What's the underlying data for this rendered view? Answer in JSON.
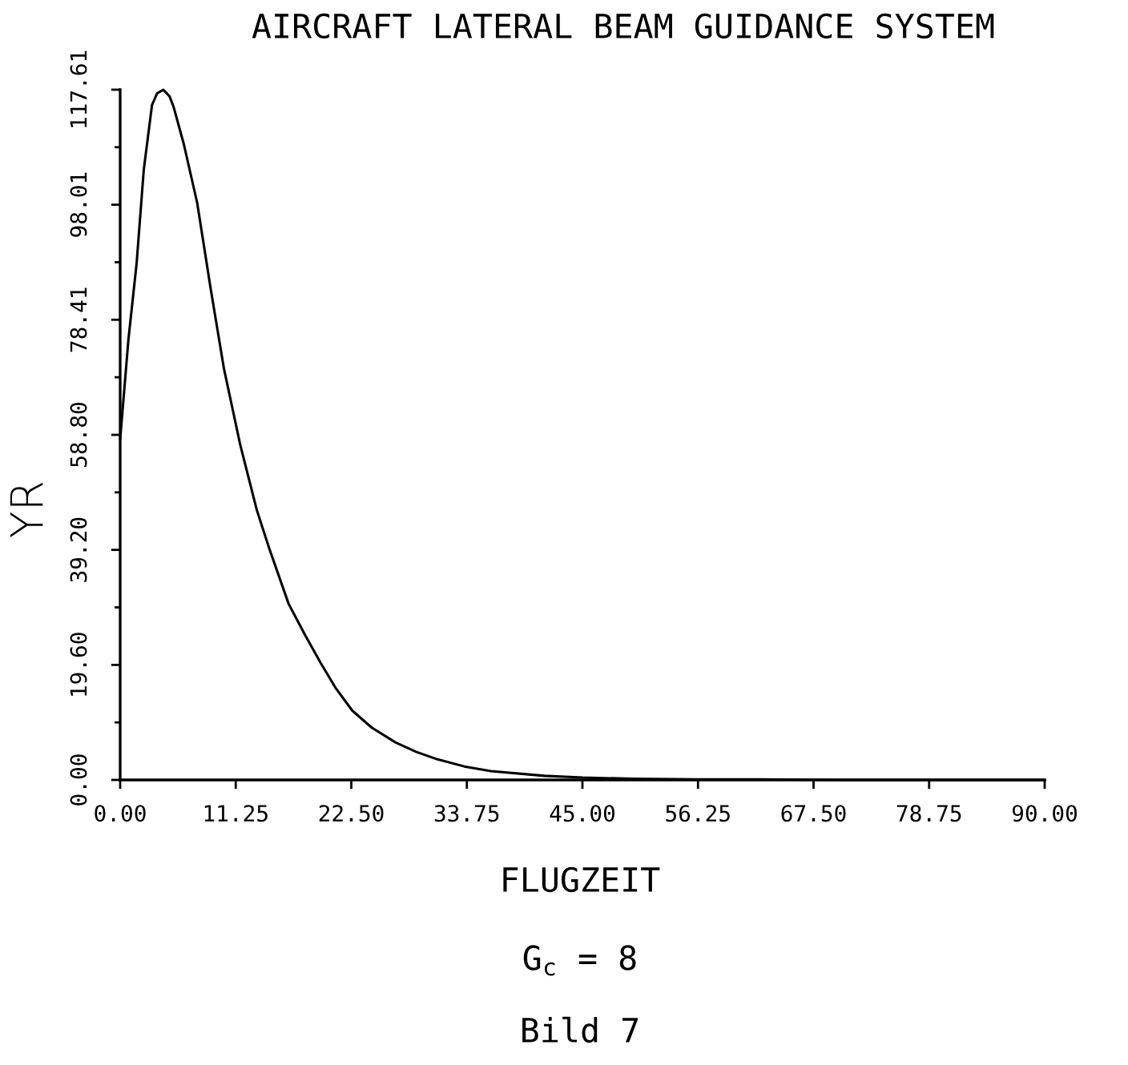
{
  "chart_data": {
    "type": "line",
    "title": "AIRCRAFT LATERAL BEAM GUIDANCE SYSTEM",
    "xlabel": "FLUGZEIT",
    "ylabel": "YR",
    "annotations": [
      "G$_{c}$ = 8",
      "Bild 7"
    ],
    "x": [
      0,
      0.8,
      1.6,
      2.3,
      3.1,
      3.6,
      4.2,
      4.8,
      5.2,
      6.2,
      7.5,
      8.8,
      10.1,
      11.7,
      13.3,
      14.5,
      16.4,
      18,
      19.5,
      21,
      22.6,
      24.5,
      26.8,
      28.8,
      30.9,
      33.5,
      36.1,
      41.3,
      45,
      50,
      56,
      62,
      70,
      80,
      90
    ],
    "series": [
      {
        "color": "#000000",
        "values": [
          58,
          75,
          88,
          104,
          115,
          117,
          117.6,
          116.5,
          114.7,
          108.3,
          98.3,
          83.8,
          70.1,
          57,
          46,
          39.5,
          30,
          24.7,
          20,
          15.6,
          11.8,
          8.9,
          6.4,
          4.8,
          3.5,
          2.3,
          1.5,
          0.7,
          0.4,
          0.2,
          0.1,
          0.1,
          0,
          0,
          0
        ]
      }
    ],
    "xlim": [
      0,
      90
    ],
    "ylim": [
      0,
      117.61
    ],
    "xticks": [
      {
        "value": 0,
        "label": "0.00"
      },
      {
        "value": 11.25,
        "label": "11.25"
      },
      {
        "value": 22.5,
        "label": "22.50"
      },
      {
        "value": 33.75,
        "label": "33.75"
      },
      {
        "value": 45,
        "label": "45.00"
      },
      {
        "value": 56.25,
        "label": "56.25"
      },
      {
        "value": 67.5,
        "label": "67.50"
      },
      {
        "value": 78.75,
        "label": "78.75"
      },
      {
        "value": 90,
        "label": "90.00"
      }
    ],
    "yticks": [
      {
        "value": 0,
        "label": "0.00"
      },
      {
        "value": 9.8,
        "label": null
      },
      {
        "value": 19.6,
        "label": "19.60"
      },
      {
        "value": 29.4,
        "label": null
      },
      {
        "value": 39.2,
        "label": "39.20"
      },
      {
        "value": 49.0,
        "label": null
      },
      {
        "value": 58.8,
        "label": "58.80"
      },
      {
        "value": 68.61,
        "label": null
      },
      {
        "value": 78.41,
        "label": "78.41"
      },
      {
        "value": 88.21,
        "label": null
      },
      {
        "value": 98.01,
        "label": "98.01"
      },
      {
        "value": 107.81,
        "label": null
      },
      {
        "value": 117.61,
        "label": "117.61"
      }
    ],
    "line_style": "solid"
  }
}
